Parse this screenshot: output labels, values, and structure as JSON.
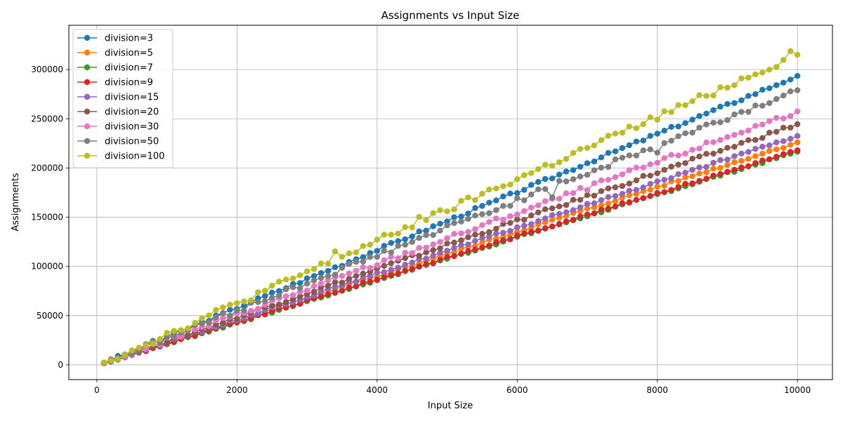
{
  "chart_data": {
    "type": "line",
    "title": "Assignments vs Input Size",
    "xlabel": "Input Size",
    "ylabel": "Assignments",
    "xlim": [
      -400,
      10500
    ],
    "ylim": [
      -15000,
      345000
    ],
    "xticks": [
      0,
      2000,
      4000,
      6000,
      8000,
      10000
    ],
    "yticks": [
      0,
      50000,
      100000,
      150000,
      200000,
      250000,
      300000
    ],
    "grid": true,
    "legend_position": "top-left",
    "x_range": {
      "start": 100,
      "end": 10000,
      "step": 100
    },
    "series": [
      {
        "name": "division=3",
        "color": "#1f77b4",
        "start": 1800,
        "end": 293500,
        "noise": 1500,
        "seed": 3,
        "bumps": []
      },
      {
        "name": "division=5",
        "color": "#ff7f0e",
        "start": 1700,
        "end": 226000,
        "noise": 1200,
        "seed": 5,
        "bumps": []
      },
      {
        "name": "division=7",
        "color": "#2ca02c",
        "start": 1600,
        "end": 216500,
        "noise": 1000,
        "seed": 7,
        "bumps": []
      },
      {
        "name": "division=9",
        "color": "#d62728",
        "start": 1600,
        "end": 218000,
        "noise": 1000,
        "seed": 9,
        "bumps": []
      },
      {
        "name": "division=15",
        "color": "#9467bd",
        "start": 1700,
        "end": 232500,
        "noise": 1200,
        "seed": 15,
        "bumps": []
      },
      {
        "name": "division=20",
        "color": "#8c564b",
        "start": 1800,
        "end": 244500,
        "noise": 1800,
        "seed": 20,
        "bumps": []
      },
      {
        "name": "division=30",
        "color": "#e377c2",
        "start": 1900,
        "end": 257500,
        "noise": 2500,
        "seed": 30,
        "bumps": []
      },
      {
        "name": "division=50",
        "color": "#7f7f7f",
        "start": 2200,
        "end": 279000,
        "noise": 3000,
        "seed": 50,
        "bumps": [
          [
            6500,
            -9000
          ],
          [
            8000,
            -8000
          ]
        ]
      },
      {
        "name": "division=100",
        "color": "#bcbd22",
        "start": 2500,
        "end": 315000,
        "noise": 3500,
        "seed": 100,
        "bumps": [
          [
            3400,
            10000
          ],
          [
            4600,
            8000
          ],
          [
            9900,
            10000
          ]
        ]
      }
    ]
  }
}
